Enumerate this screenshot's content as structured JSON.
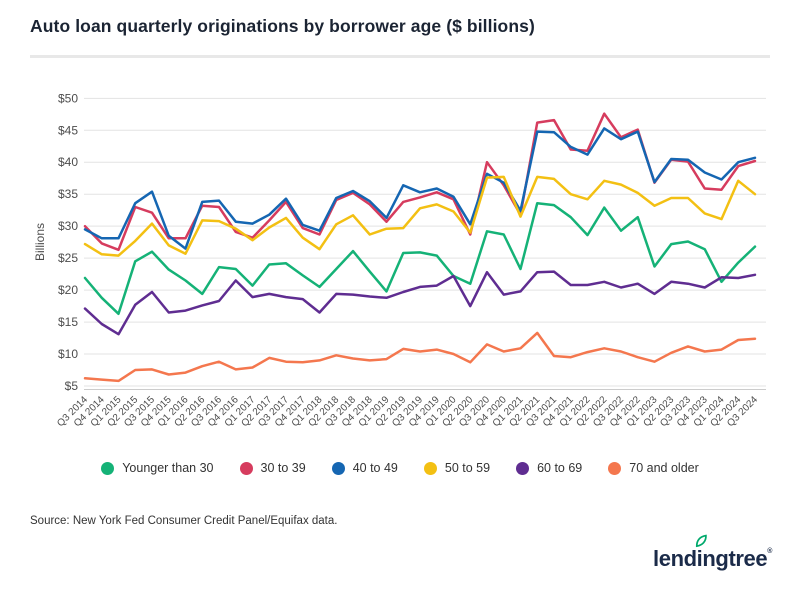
{
  "chart_data": {
    "type": "line",
    "title": "Auto loan quarterly originations by borrower age ($ billions)",
    "ylabel": "Billions",
    "xlabel": "",
    "ylim": [
      5,
      50
    ],
    "grid": true,
    "legend_position": "bottom",
    "yticks": [
      {
        "value": 5,
        "label": "$5"
      },
      {
        "value": 10,
        "label": "$10"
      },
      {
        "value": 15,
        "label": "$15"
      },
      {
        "value": 20,
        "label": "$20"
      },
      {
        "value": 25,
        "label": "$25"
      },
      {
        "value": 30,
        "label": "$30"
      },
      {
        "value": 35,
        "label": "$35"
      },
      {
        "value": 40,
        "label": "$40"
      },
      {
        "value": 45,
        "label": "$45"
      },
      {
        "value": 50,
        "label": "$50"
      }
    ],
    "categories": [
      "Q3 2014",
      "Q4 2014",
      "Q1 2015",
      "Q2 2015",
      "Q3 2015",
      "Q4 2015",
      "Q1 2016",
      "Q2 2016",
      "Q3 2016",
      "Q4 2016",
      "Q1 2017",
      "Q2 2017",
      "Q3 2017",
      "Q4 2017",
      "Q1 2018",
      "Q2 2018",
      "Q3 2018",
      "Q4 2018",
      "Q1 2019",
      "Q2 2019",
      "Q3 2019",
      "Q4 2019",
      "Q1 2020",
      "Q2 2020",
      "Q3 2020",
      "Q4 2020",
      "Q1 2021",
      "Q2 2021",
      "Q3 2021",
      "Q4 2021",
      "Q1 2022",
      "Q2 2022",
      "Q3 2022",
      "Q4 2022",
      "Q1 2023",
      "Q2 2023",
      "Q3 2023",
      "Q4 2023",
      "Q1 2024",
      "Q2 2024",
      "Q3 2024"
    ],
    "series": [
      {
        "name": "Younger than 30",
        "color": "#15B277",
        "values": [
          21.9,
          18.8,
          16.3,
          24.5,
          26.0,
          23.2,
          21.5,
          19.4,
          23.6,
          23.3,
          20.7,
          24.0,
          24.2,
          22.3,
          20.5,
          23.3,
          26.1,
          22.9,
          19.8,
          25.8,
          25.9,
          25.4,
          22.2,
          21.0,
          29.2,
          28.7,
          23.3,
          33.6,
          33.3,
          31.4,
          28.6,
          32.9,
          29.3,
          31.4,
          23.7,
          27.2,
          27.6,
          26.4,
          21.3,
          24.3,
          26.8
        ]
      },
      {
        "name": "30 to 39",
        "color": "#D63C5E",
        "values": [
          30.0,
          27.3,
          26.3,
          33.0,
          32.1,
          28.1,
          28.1,
          33.2,
          33.0,
          29.1,
          28.2,
          30.9,
          33.8,
          29.7,
          28.7,
          34.1,
          35.2,
          33.4,
          30.7,
          33.8,
          34.5,
          35.3,
          34.2,
          28.7,
          40.0,
          36.4,
          31.8,
          46.2,
          46.6,
          42.0,
          41.8,
          47.6,
          43.9,
          45.1,
          36.8,
          40.4,
          40.1,
          35.9,
          35.7,
          39.4,
          40.2
        ]
      },
      {
        "name": "40 to 49",
        "color": "#1566B2",
        "values": [
          29.5,
          28.1,
          28.1,
          33.6,
          35.4,
          28.5,
          26.5,
          33.8,
          34.0,
          30.7,
          30.4,
          31.8,
          34.3,
          30.2,
          29.3,
          34.4,
          35.5,
          33.9,
          31.3,
          36.4,
          35.3,
          35.9,
          34.6,
          30.3,
          38.2,
          36.8,
          32.4,
          44.8,
          44.7,
          42.4,
          41.2,
          45.3,
          43.6,
          44.8,
          36.9,
          40.5,
          40.4,
          38.4,
          37.3,
          40.0,
          40.7
        ]
      },
      {
        "name": "50 to 59",
        "color": "#F3C013",
        "values": [
          27.2,
          25.6,
          25.4,
          27.7,
          30.4,
          27.0,
          25.7,
          30.9,
          30.8,
          29.6,
          27.8,
          29.8,
          31.3,
          28.2,
          26.4,
          30.3,
          31.7,
          28.7,
          29.6,
          29.7,
          32.8,
          33.4,
          32.3,
          29.0,
          37.6,
          37.7,
          31.5,
          37.7,
          37.4,
          35.0,
          34.2,
          37.1,
          36.5,
          35.2,
          33.2,
          34.4,
          34.4,
          32.0,
          31.1,
          37.1,
          35.0
        ]
      },
      {
        "name": "60 to 69",
        "color": "#5F2D91",
        "values": [
          17.1,
          14.7,
          13.1,
          17.7,
          19.7,
          16.5,
          16.8,
          17.6,
          18.3,
          21.5,
          18.9,
          19.4,
          18.9,
          18.6,
          16.5,
          19.4,
          19.3,
          19.0,
          18.8,
          19.7,
          20.5,
          20.7,
          22.2,
          17.5,
          22.8,
          19.3,
          19.8,
          22.8,
          22.9,
          20.8,
          20.8,
          21.3,
          20.4,
          21.0,
          19.4,
          21.3,
          21.0,
          20.4,
          22.0,
          21.9,
          22.4
        ]
      },
      {
        "name": "70 and older",
        "color": "#F4774E",
        "values": [
          6.2,
          6.0,
          5.8,
          7.5,
          7.6,
          6.8,
          7.1,
          8.1,
          8.8,
          7.6,
          7.9,
          9.4,
          8.8,
          8.7,
          9.0,
          9.8,
          9.3,
          9.0,
          9.2,
          10.8,
          10.4,
          10.7,
          10.0,
          8.7,
          11.5,
          10.4,
          10.9,
          13.3,
          9.7,
          9.5,
          10.3,
          10.9,
          10.4,
          9.5,
          8.8,
          10.2,
          11.2,
          10.4,
          10.7,
          12.2,
          12.4
        ]
      }
    ]
  },
  "footer": {
    "source": "Source: New York Fed Consumer Credit Panel/Equifax data.",
    "logo": {
      "part1": "lend",
      "part2": "i",
      "part3": "ngtree",
      "mark": "®"
    }
  },
  "style": {
    "grid_color": "#e3e3e3",
    "axis_line_color": "#cccccc",
    "tick_label_color": "#4d4d4d"
  }
}
